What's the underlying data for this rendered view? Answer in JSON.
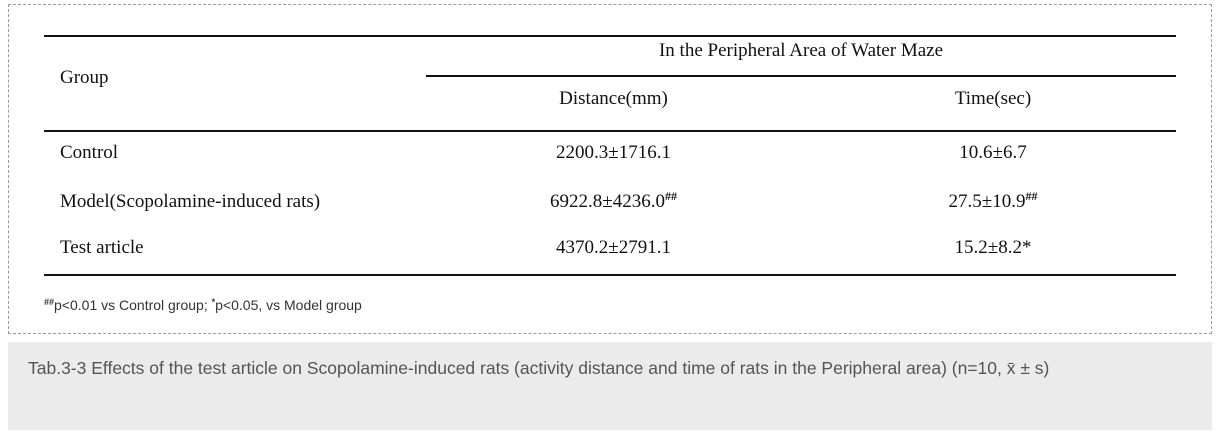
{
  "table": {
    "header": {
      "group": "Group",
      "span": "In the Peripheral Area of Water Maze",
      "columns": [
        "Distance(mm)",
        "Time(sec)"
      ]
    },
    "rows": [
      {
        "label": "Control",
        "cells": [
          {
            "text": "2200.3±1716.1"
          },
          {
            "text": "10.6±6.7"
          }
        ]
      },
      {
        "label": "Model(Scopolamine-induced rats)",
        "cells": [
          {
            "text": "6922.8±4236.0",
            "sup": "##"
          },
          {
            "text": "27.5±10.9",
            "sup": "##"
          }
        ]
      },
      {
        "label": "Test article",
        "cells": [
          {
            "text": "4370.2±2791.1"
          },
          {
            "text": "15.2±8.2*"
          }
        ]
      }
    ],
    "footnote": [
      {
        "sup": "##"
      },
      {
        "text": "p<0.01 vs Control group; "
      },
      {
        "sup": "*"
      },
      {
        "text": "p<0.05, vs Model group"
      }
    ]
  },
  "caption": "Tab.3-3 Effects of the test article on Scopolamine-induced rats (activity distance and time of rats in the Peripheral area) (n=10, x̄ ± s)"
}
